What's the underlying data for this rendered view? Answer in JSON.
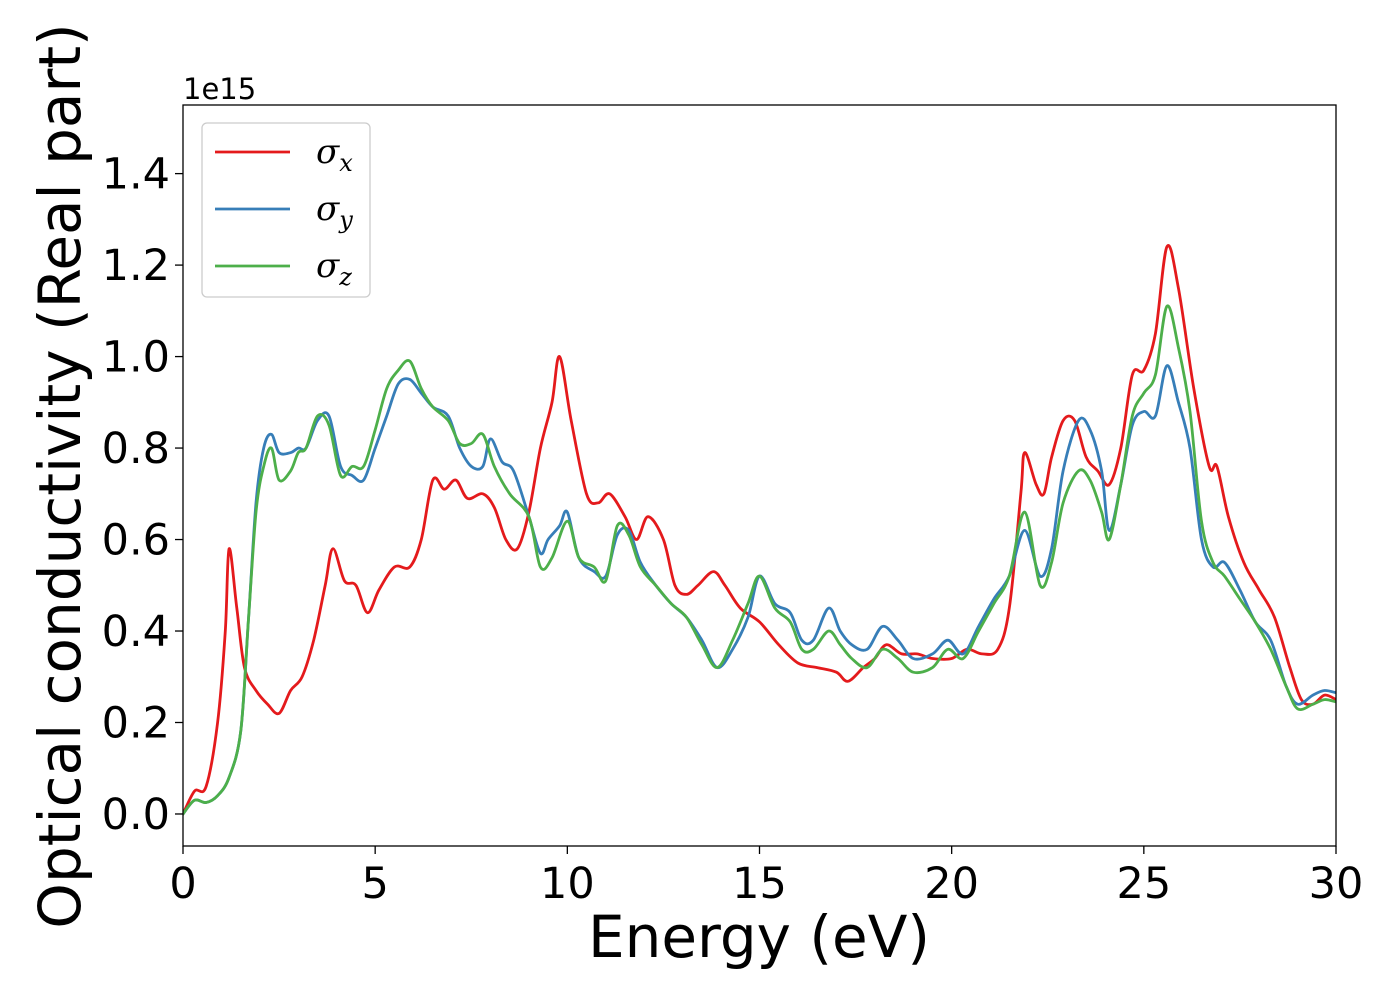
{
  "chart_data": {
    "type": "line",
    "title": "",
    "xlabel": "Energy (eV)",
    "ylabel": "Optical conductivity (Real part)",
    "y_offset_label": "1e15",
    "xlim": [
      0,
      30
    ],
    "ylim": [
      -0.07,
      1.55
    ],
    "x_ticks": [
      0,
      5,
      10,
      15,
      20,
      25,
      30
    ],
    "x_tick_labels": [
      "0",
      "5",
      "10",
      "15",
      "20",
      "25",
      "30"
    ],
    "y_ticks": [
      0.0,
      0.2,
      0.4,
      0.6,
      0.8,
      1.0,
      1.2,
      1.4
    ],
    "y_tick_labels": [
      "0.0",
      "0.2",
      "0.4",
      "0.6",
      "0.8",
      "1.0",
      "1.2",
      "1.4"
    ],
    "grid": false,
    "legend_position": "top-left",
    "series": [
      {
        "name": "σ",
        "subscript": "x",
        "color": "#e41a1c",
        "points": [
          [
            0,
            0
          ],
          [
            0.3,
            0.05
          ],
          [
            0.6,
            0.06
          ],
          [
            0.9,
            0.2
          ],
          [
            1.1,
            0.4
          ],
          [
            1.2,
            0.58
          ],
          [
            1.4,
            0.45
          ],
          [
            1.6,
            0.32
          ],
          [
            1.9,
            0.27
          ],
          [
            2.2,
            0.24
          ],
          [
            2.5,
            0.22
          ],
          [
            2.8,
            0.27
          ],
          [
            3.1,
            0.3
          ],
          [
            3.4,
            0.38
          ],
          [
            3.7,
            0.5
          ],
          [
            3.9,
            0.58
          ],
          [
            4.2,
            0.51
          ],
          [
            4.5,
            0.5
          ],
          [
            4.8,
            0.44
          ],
          [
            5.1,
            0.49
          ],
          [
            5.5,
            0.54
          ],
          [
            5.9,
            0.54
          ],
          [
            6.2,
            0.6
          ],
          [
            6.5,
            0.73
          ],
          [
            6.8,
            0.71
          ],
          [
            7.1,
            0.73
          ],
          [
            7.4,
            0.69
          ],
          [
            7.8,
            0.7
          ],
          [
            8.1,
            0.67
          ],
          [
            8.4,
            0.6
          ],
          [
            8.7,
            0.58
          ],
          [
            9.0,
            0.66
          ],
          [
            9.3,
            0.8
          ],
          [
            9.6,
            0.9
          ],
          [
            9.8,
            1.0
          ],
          [
            10.1,
            0.86
          ],
          [
            10.5,
            0.7
          ],
          [
            10.8,
            0.68
          ],
          [
            11.1,
            0.7
          ],
          [
            11.5,
            0.65
          ],
          [
            11.8,
            0.6
          ],
          [
            12.1,
            0.65
          ],
          [
            12.5,
            0.6
          ],
          [
            12.8,
            0.5
          ],
          [
            13.1,
            0.48
          ],
          [
            13.4,
            0.5
          ],
          [
            13.8,
            0.53
          ],
          [
            14.1,
            0.5
          ],
          [
            14.5,
            0.45
          ],
          [
            15.0,
            0.42
          ],
          [
            15.5,
            0.37
          ],
          [
            16.0,
            0.33
          ],
          [
            16.5,
            0.32
          ],
          [
            17.0,
            0.31
          ],
          [
            17.3,
            0.29
          ],
          [
            17.7,
            0.32
          ],
          [
            18.0,
            0.34
          ],
          [
            18.3,
            0.37
          ],
          [
            18.7,
            0.35
          ],
          [
            19.1,
            0.35
          ],
          [
            19.5,
            0.34
          ],
          [
            20.0,
            0.34
          ],
          [
            20.4,
            0.36
          ],
          [
            20.8,
            0.35
          ],
          [
            21.2,
            0.36
          ],
          [
            21.5,
            0.45
          ],
          [
            21.8,
            0.7
          ],
          [
            21.9,
            0.79
          ],
          [
            22.2,
            0.72
          ],
          [
            22.4,
            0.7
          ],
          [
            22.6,
            0.78
          ],
          [
            22.9,
            0.86
          ],
          [
            23.2,
            0.86
          ],
          [
            23.5,
            0.78
          ],
          [
            23.8,
            0.75
          ],
          [
            24.1,
            0.72
          ],
          [
            24.4,
            0.8
          ],
          [
            24.7,
            0.96
          ],
          [
            25.0,
            0.97
          ],
          [
            25.3,
            1.05
          ],
          [
            25.6,
            1.24
          ],
          [
            25.9,
            1.15
          ],
          [
            26.3,
            0.93
          ],
          [
            26.7,
            0.76
          ],
          [
            26.9,
            0.76
          ],
          [
            27.2,
            0.65
          ],
          [
            27.6,
            0.55
          ],
          [
            28.0,
            0.49
          ],
          [
            28.4,
            0.43
          ],
          [
            28.8,
            0.32
          ],
          [
            29.1,
            0.25
          ],
          [
            29.4,
            0.24
          ],
          [
            29.7,
            0.26
          ],
          [
            30.0,
            0.25
          ]
        ]
      },
      {
        "name": "σ",
        "subscript": "y",
        "color": "#377eb8",
        "points": [
          [
            0,
            0
          ],
          [
            0.3,
            0.03
          ],
          [
            0.6,
            0.025
          ],
          [
            0.9,
            0.04
          ],
          [
            1.2,
            0.08
          ],
          [
            1.5,
            0.18
          ],
          [
            1.7,
            0.42
          ],
          [
            1.9,
            0.68
          ],
          [
            2.1,
            0.8
          ],
          [
            2.3,
            0.83
          ],
          [
            2.5,
            0.79
          ],
          [
            2.8,
            0.79
          ],
          [
            3.0,
            0.8
          ],
          [
            3.2,
            0.8
          ],
          [
            3.5,
            0.86
          ],
          [
            3.8,
            0.87
          ],
          [
            4.1,
            0.76
          ],
          [
            4.4,
            0.74
          ],
          [
            4.7,
            0.73
          ],
          [
            5.0,
            0.8
          ],
          [
            5.3,
            0.87
          ],
          [
            5.6,
            0.94
          ],
          [
            5.9,
            0.95
          ],
          [
            6.2,
            0.92
          ],
          [
            6.5,
            0.89
          ],
          [
            6.9,
            0.87
          ],
          [
            7.2,
            0.8
          ],
          [
            7.5,
            0.76
          ],
          [
            7.8,
            0.76
          ],
          [
            8.0,
            0.82
          ],
          [
            8.3,
            0.77
          ],
          [
            8.6,
            0.75
          ],
          [
            9.0,
            0.65
          ],
          [
            9.3,
            0.57
          ],
          [
            9.5,
            0.6
          ],
          [
            9.8,
            0.63
          ],
          [
            10.0,
            0.66
          ],
          [
            10.3,
            0.56
          ],
          [
            10.7,
            0.53
          ],
          [
            11.0,
            0.52
          ],
          [
            11.3,
            0.61
          ],
          [
            11.6,
            0.62
          ],
          [
            11.9,
            0.55
          ],
          [
            12.3,
            0.5
          ],
          [
            12.7,
            0.46
          ],
          [
            13.1,
            0.43
          ],
          [
            13.5,
            0.38
          ],
          [
            13.9,
            0.32
          ],
          [
            14.3,
            0.36
          ],
          [
            14.7,
            0.43
          ],
          [
            15.0,
            0.52
          ],
          [
            15.4,
            0.46
          ],
          [
            15.8,
            0.44
          ],
          [
            16.1,
            0.38
          ],
          [
            16.4,
            0.38
          ],
          [
            16.8,
            0.45
          ],
          [
            17.1,
            0.4
          ],
          [
            17.4,
            0.37
          ],
          [
            17.8,
            0.36
          ],
          [
            18.2,
            0.41
          ],
          [
            18.6,
            0.38
          ],
          [
            19.0,
            0.34
          ],
          [
            19.5,
            0.35
          ],
          [
            19.9,
            0.38
          ],
          [
            20.3,
            0.35
          ],
          [
            20.7,
            0.41
          ],
          [
            21.1,
            0.47
          ],
          [
            21.5,
            0.52
          ],
          [
            21.9,
            0.62
          ],
          [
            22.3,
            0.52
          ],
          [
            22.6,
            0.58
          ],
          [
            22.9,
            0.75
          ],
          [
            23.3,
            0.86
          ],
          [
            23.6,
            0.84
          ],
          [
            23.9,
            0.75
          ],
          [
            24.1,
            0.62
          ],
          [
            24.4,
            0.72
          ],
          [
            24.7,
            0.85
          ],
          [
            25.0,
            0.88
          ],
          [
            25.3,
            0.87
          ],
          [
            25.6,
            0.98
          ],
          [
            25.9,
            0.9
          ],
          [
            26.2,
            0.8
          ],
          [
            26.5,
            0.6
          ],
          [
            26.8,
            0.54
          ],
          [
            27.1,
            0.55
          ],
          [
            27.5,
            0.49
          ],
          [
            27.9,
            0.42
          ],
          [
            28.3,
            0.38
          ],
          [
            28.7,
            0.28
          ],
          [
            29.0,
            0.24
          ],
          [
            29.4,
            0.26
          ],
          [
            29.7,
            0.27
          ],
          [
            30.0,
            0.265
          ]
        ]
      },
      {
        "name": "σ",
        "subscript": "z",
        "color": "#4daf4a",
        "points": [
          [
            0,
            0
          ],
          [
            0.3,
            0.03
          ],
          [
            0.6,
            0.025
          ],
          [
            0.9,
            0.04
          ],
          [
            1.2,
            0.08
          ],
          [
            1.5,
            0.18
          ],
          [
            1.7,
            0.42
          ],
          [
            1.9,
            0.66
          ],
          [
            2.1,
            0.76
          ],
          [
            2.3,
            0.8
          ],
          [
            2.5,
            0.73
          ],
          [
            2.8,
            0.75
          ],
          [
            3.0,
            0.79
          ],
          [
            3.2,
            0.8
          ],
          [
            3.5,
            0.87
          ],
          [
            3.8,
            0.85
          ],
          [
            4.1,
            0.74
          ],
          [
            4.4,
            0.76
          ],
          [
            4.7,
            0.76
          ],
          [
            5.0,
            0.84
          ],
          [
            5.3,
            0.93
          ],
          [
            5.6,
            0.97
          ],
          [
            5.9,
            0.99
          ],
          [
            6.2,
            0.93
          ],
          [
            6.5,
            0.89
          ],
          [
            6.9,
            0.86
          ],
          [
            7.2,
            0.81
          ],
          [
            7.5,
            0.81
          ],
          [
            7.8,
            0.83
          ],
          [
            8.1,
            0.76
          ],
          [
            8.5,
            0.7
          ],
          [
            9.0,
            0.65
          ],
          [
            9.3,
            0.54
          ],
          [
            9.6,
            0.56
          ],
          [
            10.0,
            0.64
          ],
          [
            10.3,
            0.56
          ],
          [
            10.7,
            0.54
          ],
          [
            11.0,
            0.51
          ],
          [
            11.3,
            0.63
          ],
          [
            11.6,
            0.61
          ],
          [
            11.9,
            0.54
          ],
          [
            12.3,
            0.5
          ],
          [
            12.7,
            0.46
          ],
          [
            13.1,
            0.43
          ],
          [
            13.5,
            0.37
          ],
          [
            13.9,
            0.32
          ],
          [
            14.3,
            0.38
          ],
          [
            14.7,
            0.46
          ],
          [
            15.0,
            0.52
          ],
          [
            15.4,
            0.45
          ],
          [
            15.8,
            0.42
          ],
          [
            16.1,
            0.36
          ],
          [
            16.4,
            0.36
          ],
          [
            16.8,
            0.4
          ],
          [
            17.1,
            0.37
          ],
          [
            17.4,
            0.34
          ],
          [
            17.8,
            0.32
          ],
          [
            18.2,
            0.36
          ],
          [
            18.6,
            0.34
          ],
          [
            19.0,
            0.31
          ],
          [
            19.5,
            0.32
          ],
          [
            19.9,
            0.36
          ],
          [
            20.3,
            0.34
          ],
          [
            20.7,
            0.4
          ],
          [
            21.1,
            0.46
          ],
          [
            21.5,
            0.52
          ],
          [
            21.9,
            0.66
          ],
          [
            22.3,
            0.5
          ],
          [
            22.6,
            0.55
          ],
          [
            22.9,
            0.68
          ],
          [
            23.3,
            0.75
          ],
          [
            23.6,
            0.73
          ],
          [
            23.9,
            0.66
          ],
          [
            24.1,
            0.6
          ],
          [
            24.4,
            0.72
          ],
          [
            24.7,
            0.87
          ],
          [
            25.0,
            0.92
          ],
          [
            25.3,
            0.96
          ],
          [
            25.6,
            1.11
          ],
          [
            25.9,
            1.02
          ],
          [
            26.2,
            0.88
          ],
          [
            26.5,
            0.64
          ],
          [
            26.8,
            0.55
          ],
          [
            27.1,
            0.52
          ],
          [
            27.5,
            0.47
          ],
          [
            27.9,
            0.42
          ],
          [
            28.3,
            0.36
          ],
          [
            28.7,
            0.28
          ],
          [
            29.0,
            0.23
          ],
          [
            29.4,
            0.24
          ],
          [
            29.7,
            0.25
          ],
          [
            30.0,
            0.245
          ]
        ]
      }
    ]
  }
}
